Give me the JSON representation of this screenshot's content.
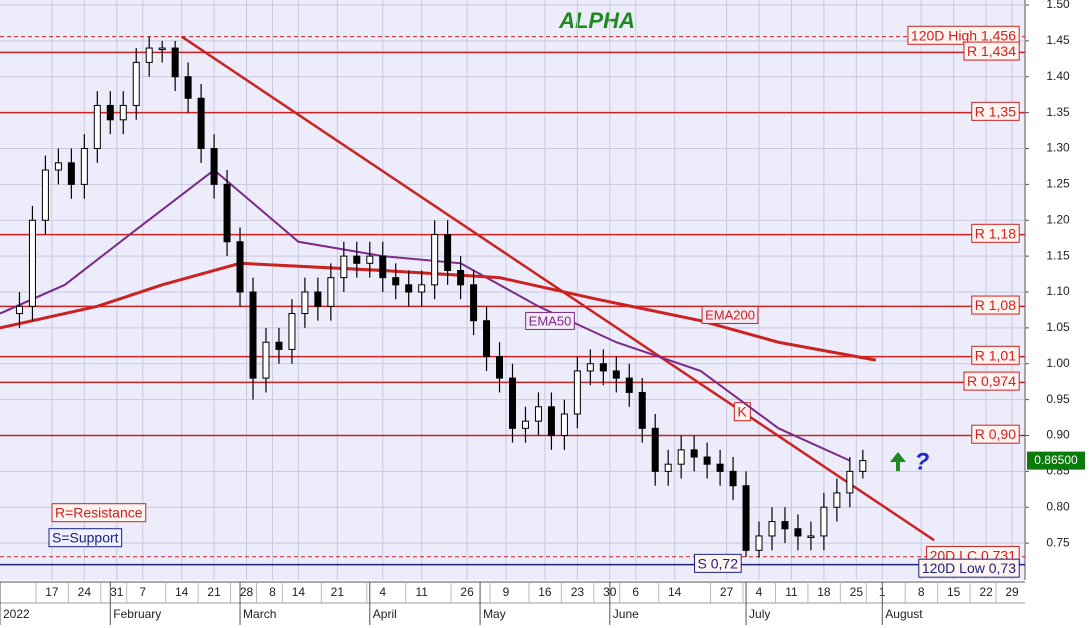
{
  "chart_data": {
    "type": "candlestick",
    "title": "ALPHA",
    "xlim": [
      0,
      158
    ],
    "ylim": [
      0.7,
      1.5
    ],
    "yticks": [
      {
        "value": 1.5,
        "label": "1.50"
      },
      1.45,
      {
        "value": 1.4,
        "label": "1.40"
      },
      1.35,
      {
        "value": 1.3,
        "label": "1.30"
      },
      1.25,
      {
        "value": 1.2,
        "label": "1.20"
      },
      1.15,
      {
        "value": 1.1,
        "label": "1.10"
      },
      1.05,
      {
        "value": 1.0,
        "label": "1.00"
      },
      0.95,
      {
        "value": 0.9,
        "label": "0.90"
      },
      0.85,
      {
        "value": 0.8,
        "label": "0.80"
      },
      0.75
    ],
    "xticks": [
      {
        "value": 8,
        "label": "17"
      },
      {
        "value": 13,
        "label": "24"
      },
      {
        "value": 18,
        "label": "31"
      },
      {
        "value": 22,
        "label": "7"
      },
      {
        "value": 28,
        "label": "14"
      },
      {
        "value": 33,
        "label": "21"
      },
      {
        "value": 38,
        "label": "28"
      },
      {
        "value": 42,
        "label": "8"
      },
      {
        "value": 46,
        "label": "14"
      },
      {
        "value": 52,
        "label": "21"
      },
      {
        "value": 59,
        "label": "4"
      },
      {
        "value": 65,
        "label": "11"
      },
      {
        "value": 72,
        "label": "26"
      },
      {
        "value": 78,
        "label": "9"
      },
      {
        "value": 84,
        "label": "16"
      },
      {
        "value": 89,
        "label": "23"
      },
      {
        "value": 94,
        "label": "30"
      },
      {
        "value": 98,
        "label": "6"
      },
      {
        "value": 104,
        "label": "14"
      },
      {
        "value": 112,
        "label": "27"
      },
      {
        "value": 117,
        "label": "4"
      },
      {
        "value": 122,
        "label": "11"
      },
      {
        "value": 127,
        "label": "18"
      },
      {
        "value": 132,
        "label": "25"
      },
      {
        "value": 136,
        "label": "1"
      },
      {
        "value": 142,
        "label": "8"
      },
      {
        "value": 147,
        "label": "15"
      },
      {
        "value": 152,
        "label": "22"
      },
      {
        "value": 156,
        "label": "29"
      }
    ],
    "month_labels": [
      {
        "value": 0,
        "label": "2022"
      },
      {
        "value": 17,
        "label": "February"
      },
      {
        "value": 37,
        "label": "March"
      },
      {
        "value": 57,
        "label": "April"
      },
      {
        "value": 74,
        "label": "May"
      },
      {
        "value": 94,
        "label": "June"
      },
      {
        "value": 115,
        "label": "July"
      },
      {
        "value": 136,
        "label": "August"
      }
    ],
    "grid": true,
    "up_color": "#ffffff",
    "down_color": "#000000",
    "x": [
      3,
      5,
      7,
      9,
      11,
      13,
      15,
      17,
      19,
      21,
      23,
      25,
      27,
      29,
      31,
      33,
      35,
      37,
      39,
      41,
      43,
      45,
      47,
      49,
      51,
      53,
      55,
      57,
      59,
      61,
      63,
      65,
      67,
      69,
      71,
      73,
      75,
      77,
      79,
      81,
      83,
      85,
      87,
      89,
      91,
      93,
      95,
      97,
      99,
      101,
      103,
      105,
      107,
      109,
      111,
      113,
      115,
      117,
      119,
      121,
      123,
      125,
      127,
      129,
      131,
      133
    ],
    "open": [
      1.07,
      1.08,
      1.2,
      1.27,
      1.28,
      1.25,
      1.3,
      1.36,
      1.34,
      1.36,
      1.42,
      1.44,
      1.44,
      1.4,
      1.37,
      1.3,
      1.25,
      1.17,
      1.1,
      0.98,
      1.03,
      1.02,
      1.07,
      1.1,
      1.08,
      1.12,
      1.15,
      1.14,
      1.15,
      1.12,
      1.11,
      1.1,
      1.11,
      1.18,
      1.13,
      1.11,
      1.06,
      1.01,
      0.98,
      0.91,
      0.92,
      0.94,
      0.9,
      0.93,
      0.99,
      1.0,
      0.99,
      0.98,
      0.96,
      0.91,
      0.85,
      0.86,
      0.88,
      0.87,
      0.86,
      0.85,
      0.83,
      0.74,
      0.76,
      0.78,
      0.77,
      0.76,
      0.76,
      0.8,
      0.82,
      0.85
    ],
    "high": [
      1.1,
      1.22,
      1.29,
      1.3,
      1.3,
      1.32,
      1.38,
      1.38,
      1.38,
      1.44,
      1.456,
      1.45,
      1.45,
      1.42,
      1.39,
      1.32,
      1.27,
      1.19,
      1.12,
      1.05,
      1.05,
      1.09,
      1.12,
      1.12,
      1.14,
      1.17,
      1.17,
      1.17,
      1.17,
      1.14,
      1.13,
      1.13,
      1.2,
      1.2,
      1.15,
      1.13,
      1.08,
      1.03,
      1.0,
      0.94,
      0.96,
      0.96,
      0.95,
      1.01,
      1.02,
      1.02,
      1.01,
      1.0,
      0.98,
      0.93,
      0.88,
      0.9,
      0.9,
      0.89,
      0.88,
      0.87,
      0.85,
      0.78,
      0.8,
      0.8,
      0.79,
      0.78,
      0.82,
      0.84,
      0.87,
      0.88
    ],
    "low": [
      1.05,
      1.06,
      1.18,
      1.25,
      1.23,
      1.23,
      1.28,
      1.32,
      1.32,
      1.34,
      1.4,
      1.42,
      1.38,
      1.35,
      1.28,
      1.23,
      1.15,
      1.08,
      0.95,
      0.96,
      1.0,
      1.0,
      1.05,
      1.06,
      1.06,
      1.1,
      1.12,
      1.12,
      1.1,
      1.09,
      1.08,
      1.08,
      1.09,
      1.11,
      1.09,
      1.04,
      0.99,
      0.96,
      0.89,
      0.89,
      0.9,
      0.88,
      0.88,
      0.91,
      0.97,
      0.97,
      0.96,
      0.94,
      0.89,
      0.83,
      0.83,
      0.84,
      0.85,
      0.84,
      0.83,
      0.81,
      0.731,
      0.73,
      0.74,
      0.75,
      0.74,
      0.74,
      0.74,
      0.78,
      0.8,
      0.84
    ],
    "close": [
      1.08,
      1.2,
      1.27,
      1.28,
      1.25,
      1.3,
      1.36,
      1.34,
      1.36,
      1.42,
      1.44,
      1.44,
      1.4,
      1.37,
      1.3,
      1.25,
      1.17,
      1.1,
      0.98,
      1.03,
      1.02,
      1.07,
      1.1,
      1.08,
      1.12,
      1.15,
      1.14,
      1.15,
      1.12,
      1.11,
      1.1,
      1.11,
      1.18,
      1.13,
      1.11,
      1.06,
      1.01,
      0.98,
      0.91,
      0.92,
      0.94,
      0.9,
      0.93,
      0.99,
      1.0,
      0.99,
      0.98,
      0.96,
      0.91,
      0.85,
      0.86,
      0.88,
      0.87,
      0.86,
      0.85,
      0.83,
      0.74,
      0.76,
      0.78,
      0.77,
      0.76,
      0.76,
      0.8,
      0.82,
      0.85,
      0.865
    ],
    "series": [
      {
        "name": "EMA50",
        "color": "#7b2a86",
        "x": [
          0,
          10,
          20,
          33,
          46,
          59,
          71,
          83,
          95,
          108,
          120,
          131
        ],
        "values": [
          1.07,
          1.11,
          1.18,
          1.27,
          1.17,
          1.15,
          1.14,
          1.08,
          1.03,
          0.99,
          0.91,
          0.865
        ]
      },
      {
        "name": "EMA200",
        "color": "#cc2222",
        "x": [
          0,
          15,
          25,
          37,
          59,
          77,
          92,
          108,
          120,
          135
        ],
        "values": [
          1.05,
          1.08,
          1.11,
          1.14,
          1.13,
          1.12,
          1.09,
          1.06,
          1.03,
          1.005
        ]
      }
    ],
    "trendline": {
      "label": "K",
      "color": "#cc2222",
      "x": [
        28,
        144
      ],
      "values": [
        1.456,
        0.754
      ]
    },
    "levels": [
      {
        "value": 1.456,
        "label": "120D High 1,456",
        "color": "#cc2222",
        "style": "dashed"
      },
      {
        "value": 1.434,
        "label": "R 1,434",
        "color": "#cc2222",
        "style": "solid"
      },
      {
        "value": 1.35,
        "label": "R 1,35",
        "color": "#cc2222",
        "style": "solid"
      },
      {
        "value": 1.18,
        "label": "R 1,18",
        "color": "#cc2222",
        "style": "solid"
      },
      {
        "value": 1.08,
        "label": "R 1,08",
        "color": "#cc2222",
        "style": "solid"
      },
      {
        "value": 1.01,
        "label": "R 1,01",
        "color": "#cc2222",
        "style": "solid"
      },
      {
        "value": 0.974,
        "label": "R 0,974",
        "color": "#cc2222",
        "style": "solid"
      },
      {
        "value": 0.9,
        "label": "R 0,90",
        "color": "#cc2222",
        "style": "solid"
      },
      {
        "value": 0.731,
        "label": "20D LC 0,731",
        "color": "#cc2222",
        "style": "dashed"
      },
      {
        "value": 0.72,
        "label": "S 0,72",
        "color": "#1a237e",
        "style": "solid"
      },
      {
        "value": 0.73,
        "label": "120D Low 0,73",
        "color": "#1a237e",
        "style": "none"
      }
    ],
    "last_price": {
      "value": 0.865,
      "label": "0.86500"
    },
    "annotations": [
      "R=Resistance",
      "S=Support",
      "?"
    ]
  }
}
